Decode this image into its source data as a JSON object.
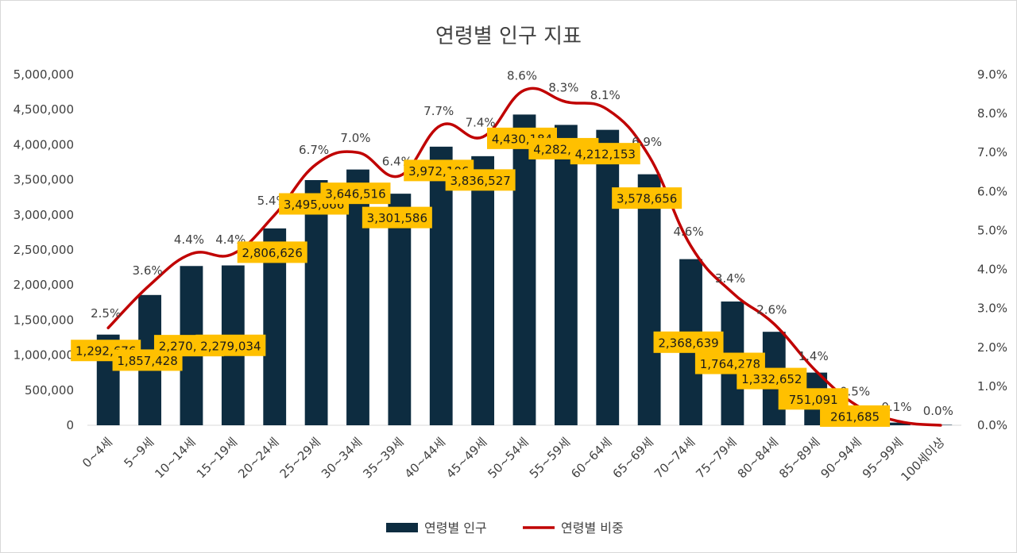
{
  "chart_data": {
    "type": "bar+line",
    "title": "연령별 인구 지표",
    "categories": [
      "0~4세",
      "5~9세",
      "10~14세",
      "15~19세",
      "20~24세",
      "25~29세",
      "30~34세",
      "35~39세",
      "40~44세",
      "45~49세",
      "50~54세",
      "55~59세",
      "60~64세",
      "65~69세",
      "70~74세",
      "75~79세",
      "80~84세",
      "85~89세",
      "90~94세",
      "95~99세",
      "100세이상"
    ],
    "series": [
      {
        "name": "연령별 인구",
        "type": "bar",
        "axis": "left",
        "color": "#0d2c40",
        "values": [
          1292676,
          1857428,
          2270694,
          2279034,
          2806626,
          3495666,
          3646516,
          3301586,
          3972106,
          3836527,
          4430184,
          4282631,
          4212153,
          3578656,
          2368639,
          1764278,
          1332652,
          751091,
          261685,
          38000,
          6000
        ],
        "labels": [
          "1,292,676",
          "1,857,428",
          "2,270,694",
          "2,279,034",
          "2,806,626",
          "3,495,666",
          "3,646,516",
          "3,301,586",
          "3,972,106",
          "3,836,527",
          "4,430,184",
          "4,282,631",
          "4,212,153",
          "3,578,656",
          "2,368,639",
          "1,764,278",
          "1,332,652",
          "751,091",
          "261,685",
          "",
          ""
        ]
      },
      {
        "name": "연령별 비중",
        "type": "line",
        "axis": "right",
        "color": "#c00000",
        "values": [
          2.5,
          3.6,
          4.4,
          4.4,
          5.4,
          6.7,
          7.0,
          6.4,
          7.7,
          7.4,
          8.6,
          8.3,
          8.1,
          6.9,
          4.6,
          3.4,
          2.6,
          1.4,
          0.5,
          0.1,
          0.0
        ],
        "labels": [
          "2.5%",
          "3.6%",
          "4.4%",
          "4.4%",
          "5.4%",
          "6.7%",
          "7.0%",
          "6.4%",
          "7.7%",
          "7.4%",
          "8.6%",
          "8.3%",
          "8.1%",
          "6.9%",
          "4.6%",
          "3.4%",
          "2.6%",
          "1.4%",
          "0.5%",
          "0.1%",
          "0.0%"
        ]
      }
    ],
    "y_left": {
      "min": 0,
      "max": 5000000,
      "step": 500000,
      "ticks": [
        "0",
        "500,000",
        "1,000,000",
        "1,500,000",
        "2,000,000",
        "2,500,000",
        "3,000,000",
        "3,500,000",
        "4,000,000",
        "4,500,000",
        "5,000,000"
      ]
    },
    "y_right": {
      "min": 0,
      "max": 9,
      "step": 1,
      "ticks": [
        "0.0%",
        "1.0%",
        "2.0%",
        "3.0%",
        "4.0%",
        "5.0%",
        "6.0%",
        "7.0%",
        "8.0%",
        "9.0%"
      ]
    },
    "label_box_color": "#ffc000",
    "grid": false,
    "legend": "bottom"
  }
}
